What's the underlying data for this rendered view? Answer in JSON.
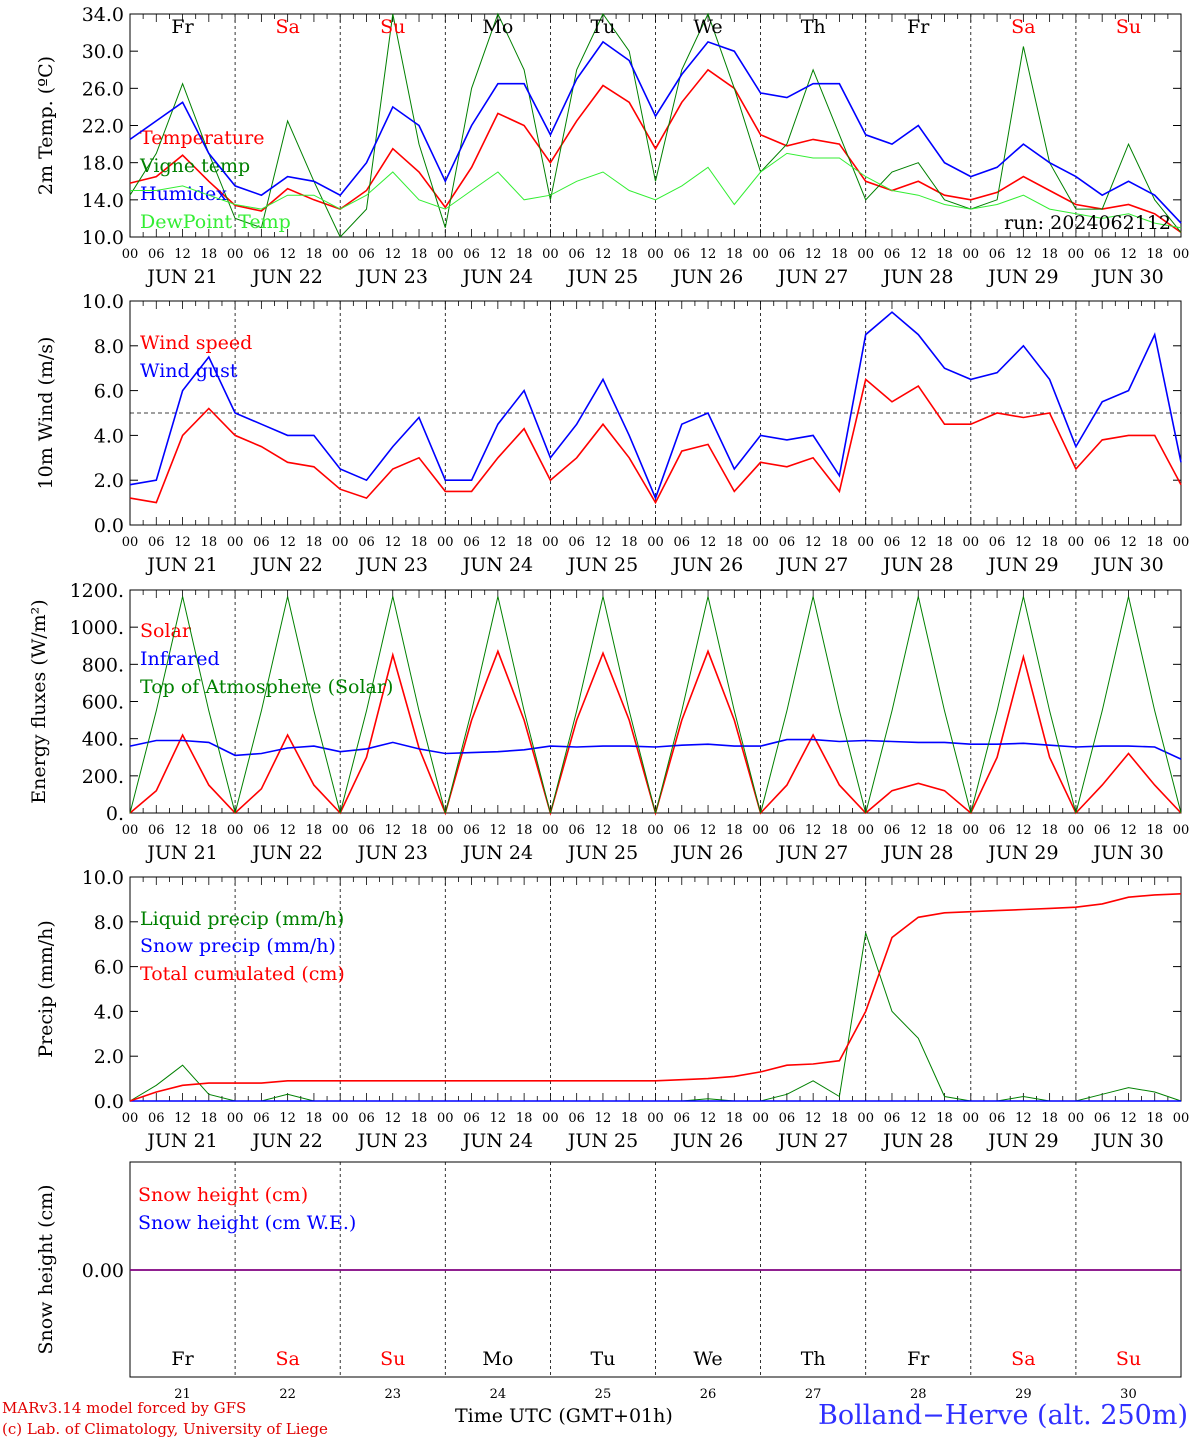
{
  "days": [
    "21",
    "22",
    "23",
    "24",
    "25",
    "26",
    "27",
    "28",
    "29",
    "30"
  ],
  "day_names": [
    "Fr",
    "Sa",
    "Su",
    "Mo",
    "Tu",
    "We",
    "Th",
    "Fr",
    "Sa",
    "Su"
  ],
  "weekend_flags": [
    false,
    true,
    true,
    false,
    false,
    false,
    false,
    false,
    true,
    true
  ],
  "date_labels": [
    "JUN 21",
    "JUN 22",
    "JUN 23",
    "JUN 24",
    "JUN 25",
    "JUN 26",
    "JUN 27",
    "JUN 28",
    "JUN 29",
    "JUN 30"
  ],
  "hour_ticks": [
    "00",
    "06",
    "12",
    "18"
  ],
  "final_tick": "00",
  "colors": {
    "red": "#ff0000",
    "green": "#008000",
    "blue": "#0000ff",
    "lightgreen": "#33ee33",
    "purple": "#800080"
  },
  "footer": {
    "model": "MARv3.14 model forced by GFS",
    "lab": "(c) Lab. of Climatology, University of Liege",
    "xlabel": "Time UTC (GMT+01h)",
    "station": "Bolland−Herve (alt. 250m)"
  },
  "chart_data": [
    {
      "type": "line",
      "ylabel": "2m Temp. (ºC)",
      "ylim": [
        10,
        34
      ],
      "yticks": [
        "10.0",
        "14.0",
        "18.0",
        "22.0",
        "26.0",
        "30.0",
        "34.0"
      ],
      "x_hours": [
        0,
        6,
        12,
        18,
        24,
        30,
        36,
        42,
        48,
        54,
        60,
        66,
        72,
        78,
        84,
        90,
        96,
        102,
        108,
        114,
        120,
        126,
        132,
        138,
        144,
        150,
        156,
        162,
        168,
        174,
        180,
        186,
        192,
        198,
        204,
        210,
        216,
        222,
        228,
        234,
        240
      ],
      "annotation": "run: 2024062112",
      "series": [
        {
          "name": "Temperature",
          "color": "red",
          "values": [
            15.8,
            16.5,
            18.8,
            16.0,
            13.4,
            12.8,
            15.2,
            14.0,
            13.0,
            15.0,
            19.5,
            17.0,
            13.2,
            17.5,
            23.3,
            22.0,
            18.0,
            22.5,
            26.3,
            24.5,
            19.5,
            24.5,
            28.0,
            26.0,
            21.0,
            19.8,
            20.5,
            20.0,
            16.0,
            15.0,
            16.0,
            14.5,
            14.0,
            14.8,
            16.5,
            15.0,
            13.5,
            13.0,
            13.5,
            12.5,
            10.5
          ]
        },
        {
          "name": "Vigne temp",
          "color": "green",
          "values": [
            14.5,
            19.0,
            26.5,
            19.0,
            12.0,
            11.0,
            22.5,
            16.0,
            10.0,
            13.0,
            34.0,
            20.0,
            11.0,
            26.0,
            34.0,
            28.0,
            14.0,
            28.0,
            34.0,
            30.0,
            16.0,
            28.0,
            34.0,
            26.0,
            17.0,
            20.0,
            28.0,
            21.0,
            14.0,
            17.0,
            18.0,
            14.0,
            13.0,
            14.0,
            30.5,
            18.0,
            13.0,
            13.0,
            20.0,
            14.0,
            10.5
          ]
        },
        {
          "name": "Humidex",
          "color": "blue",
          "values": [
            20.5,
            22.5,
            24.5,
            19.0,
            15.5,
            14.5,
            16.5,
            16.0,
            14.5,
            18.0,
            24.0,
            22.0,
            16.0,
            22.0,
            26.5,
            26.5,
            21.0,
            27.0,
            31.0,
            29.0,
            23.0,
            27.5,
            31.0,
            30.0,
            25.5,
            25.0,
            26.5,
            26.5,
            21.0,
            20.0,
            22.0,
            18.0,
            16.5,
            17.5,
            20.0,
            18.0,
            16.5,
            14.5,
            16.0,
            14.5,
            11.5
          ]
        },
        {
          "name": "DewPoint Temp",
          "color": "lightgreen",
          "values": [
            15.0,
            15.0,
            15.5,
            14.5,
            13.5,
            13.0,
            14.5,
            14.5,
            13.0,
            14.5,
            17.0,
            14.0,
            13.0,
            15.0,
            17.0,
            14.0,
            14.5,
            16.0,
            17.0,
            15.0,
            14.0,
            15.5,
            17.5,
            13.5,
            17.0,
            19.0,
            18.5,
            18.5,
            16.5,
            15.0,
            14.5,
            13.5,
            13.0,
            13.5,
            14.5,
            13.0,
            12.5,
            12.0,
            12.5,
            11.5,
            11.0
          ]
        }
      ]
    },
    {
      "type": "line",
      "ylabel": "10m Wind (m/s)",
      "ylim": [
        0,
        10
      ],
      "yticks": [
        "0.0",
        "2.0",
        "4.0",
        "6.0",
        "8.0",
        "10.0"
      ],
      "ref_line": 5,
      "x_hours": [
        0,
        6,
        12,
        18,
        24,
        30,
        36,
        42,
        48,
        54,
        60,
        66,
        72,
        78,
        84,
        90,
        96,
        102,
        108,
        114,
        120,
        126,
        132,
        138,
        144,
        150,
        156,
        162,
        168,
        174,
        180,
        186,
        192,
        198,
        204,
        210,
        216,
        222,
        228,
        234,
        240
      ],
      "series": [
        {
          "name": "Wind speed",
          "color": "red",
          "values": [
            1.2,
            1.0,
            4.0,
            5.2,
            4.0,
            3.5,
            2.8,
            2.6,
            1.6,
            1.2,
            2.5,
            3.0,
            1.5,
            1.5,
            3.0,
            4.3,
            2.0,
            3.0,
            4.5,
            3.0,
            1.0,
            3.3,
            3.6,
            1.5,
            2.8,
            2.6,
            3.0,
            1.5,
            6.5,
            5.5,
            6.2,
            4.5,
            4.5,
            5.0,
            4.8,
            5.0,
            2.5,
            3.8,
            4.0,
            4.0,
            1.8
          ]
        },
        {
          "name": "Wind gust",
          "color": "blue",
          "values": [
            1.8,
            2.0,
            6.0,
            7.5,
            5.0,
            4.5,
            4.0,
            4.0,
            2.5,
            2.0,
            3.5,
            4.8,
            2.0,
            2.0,
            4.5,
            6.0,
            3.0,
            4.5,
            6.5,
            4.0,
            1.2,
            4.5,
            5.0,
            2.5,
            4.0,
            3.8,
            4.0,
            2.2,
            8.5,
            9.5,
            8.5,
            7.0,
            6.5,
            6.8,
            8.0,
            6.5,
            3.5,
            5.5,
            6.0,
            8.5,
            2.8
          ]
        }
      ]
    },
    {
      "type": "line",
      "ylabel": "Energy fluxes (W/m²)",
      "ylim": [
        0,
        1200
      ],
      "yticks": [
        "0.",
        "200.",
        "400.",
        "600.",
        "800.",
        "1000.",
        "1200."
      ],
      "x_hours": [
        0,
        6,
        12,
        18,
        24,
        30,
        36,
        42,
        48,
        54,
        60,
        66,
        72,
        78,
        84,
        90,
        96,
        102,
        108,
        114,
        120,
        126,
        132,
        138,
        144,
        150,
        156,
        162,
        168,
        174,
        180,
        186,
        192,
        198,
        204,
        210,
        216,
        222,
        228,
        234,
        240
      ],
      "series": [
        {
          "name": "Solar",
          "color": "red",
          "values": [
            0,
            120,
            420,
            150,
            0,
            130,
            420,
            150,
            0,
            300,
            850,
            350,
            0,
            500,
            870,
            500,
            0,
            500,
            860,
            500,
            0,
            500,
            870,
            500,
            0,
            150,
            420,
            150,
            0,
            120,
            160,
            120,
            0,
            300,
            840,
            300,
            0,
            150,
            320,
            150,
            0
          ]
        },
        {
          "name": "Infrared",
          "color": "blue",
          "values": [
            360,
            390,
            390,
            380,
            310,
            320,
            350,
            360,
            330,
            345,
            380,
            345,
            320,
            325,
            330,
            340,
            360,
            355,
            360,
            360,
            355,
            365,
            370,
            360,
            360,
            395,
            395,
            385,
            390,
            385,
            380,
            380,
            370,
            370,
            375,
            365,
            355,
            360,
            360,
            355,
            290
          ]
        },
        {
          "name": "Top of Atmosphere (Solar)",
          "color": "green",
          "values": [
            0,
            550,
            1165,
            550,
            0,
            550,
            1165,
            550,
            0,
            550,
            1165,
            550,
            0,
            550,
            1165,
            550,
            0,
            550,
            1165,
            550,
            0,
            550,
            1165,
            550,
            0,
            550,
            1165,
            550,
            0,
            550,
            1165,
            550,
            0,
            550,
            1165,
            550,
            0,
            550,
            1165,
            550,
            0
          ]
        }
      ]
    },
    {
      "type": "line",
      "ylabel": "Precip (mm/h)",
      "ylim": [
        0,
        10
      ],
      "yticks": [
        "0.0",
        "2.0",
        "4.0",
        "6.0",
        "8.0",
        "10.0"
      ],
      "x_hours": [
        0,
        6,
        12,
        18,
        24,
        30,
        36,
        42,
        48,
        54,
        60,
        66,
        72,
        78,
        84,
        90,
        96,
        102,
        108,
        114,
        120,
        126,
        132,
        138,
        144,
        150,
        156,
        162,
        168,
        174,
        180,
        186,
        192,
        198,
        204,
        210,
        216,
        222,
        228,
        234,
        240
      ],
      "series": [
        {
          "name": "Liquid precip (mm/h)",
          "color": "green",
          "values": [
            0,
            0.7,
            1.6,
            0.3,
            0,
            0,
            0.3,
            0,
            0,
            0,
            0,
            0,
            0,
            0,
            0,
            0,
            0,
            0,
            0,
            0,
            0,
            0,
            0.1,
            0,
            0,
            0.3,
            0.9,
            0.2,
            7.5,
            4.0,
            2.8,
            0.2,
            0,
            0,
            0.2,
            0,
            0,
            0.3,
            0.6,
            0.4,
            0
          ]
        },
        {
          "name": "Snow precip (mm/h)",
          "color": "blue",
          "values": [
            0,
            0,
            0,
            0,
            0,
            0,
            0,
            0,
            0,
            0,
            0,
            0,
            0,
            0,
            0,
            0,
            0,
            0,
            0,
            0,
            0,
            0,
            0,
            0,
            0,
            0,
            0,
            0,
            0,
            0,
            0,
            0,
            0,
            0,
            0,
            0,
            0,
            0,
            0,
            0,
            0
          ]
        },
        {
          "name": "Total cumulated (cm)",
          "color": "red",
          "values": [
            0,
            0.4,
            0.7,
            0.8,
            0.8,
            0.8,
            0.9,
            0.9,
            0.9,
            0.9,
            0.9,
            0.9,
            0.9,
            0.9,
            0.9,
            0.9,
            0.9,
            0.9,
            0.9,
            0.9,
            0.9,
            0.95,
            1.0,
            1.1,
            1.3,
            1.6,
            1.65,
            1.8,
            4.0,
            7.3,
            8.2,
            8.4,
            8.45,
            8.5,
            8.55,
            8.6,
            8.65,
            8.8,
            9.1,
            9.2,
            9.25
          ]
        }
      ]
    },
    {
      "type": "line",
      "ylabel": "Snow height (cm)",
      "yticks": [
        "0.00"
      ],
      "x_hours": [
        0,
        240
      ],
      "series": [
        {
          "name": "Snow height (cm)",
          "color": "red",
          "values": [
            0,
            0
          ]
        },
        {
          "name": "Snow height (cm W.E.)",
          "color": "blue",
          "values": [
            0,
            0
          ]
        }
      ]
    }
  ]
}
